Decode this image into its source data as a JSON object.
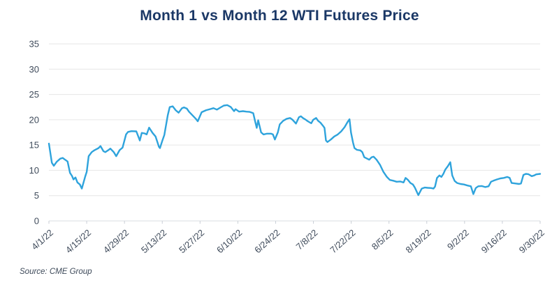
{
  "chart_data": {
    "type": "line",
    "title": "Month 1 vs Month 12 WTI Futures Price",
    "source_note": "Source: CME Group",
    "xlabel": "",
    "ylabel": "",
    "ylim": [
      0,
      35
    ],
    "y_ticks": [
      0,
      5,
      10,
      15,
      20,
      25,
      30,
      35
    ],
    "x_tick_labels": [
      "4/1/22",
      "4/15/22",
      "4/29/22",
      "5/13/22",
      "5/27/22",
      "6/10/22",
      "6/24/22",
      "7/8/22",
      "7/22/22",
      "8/5/22",
      "8/19/22",
      "9/2/22",
      "9/16/22",
      "9/30/22"
    ],
    "grid": "horizontal-only",
    "legend": "none",
    "colors": {
      "line": "#2ea3dc",
      "title": "#1b3866",
      "axis_text": "#3f4b5b",
      "gridline": "#e6e6e6",
      "baseline": "#d9dde2",
      "tick": "#c9ced6",
      "source_text": "#3e4a5a",
      "background": "#ffffff"
    },
    "series": [
      {
        "color": "#2ea3dc",
        "points": [
          [
            0.0,
            15.3
          ],
          [
            0.006,
            11.5
          ],
          [
            0.01,
            10.9
          ],
          [
            0.016,
            11.7
          ],
          [
            0.023,
            12.3
          ],
          [
            0.028,
            12.45
          ],
          [
            0.033,
            12.1
          ],
          [
            0.038,
            11.75
          ],
          [
            0.043,
            9.5
          ],
          [
            0.047,
            8.9
          ],
          [
            0.05,
            8.2
          ],
          [
            0.054,
            8.6
          ],
          [
            0.058,
            7.6
          ],
          [
            0.063,
            7.2
          ],
          [
            0.067,
            6.4
          ],
          [
            0.074,
            8.8
          ],
          [
            0.077,
            9.7
          ],
          [
            0.081,
            12.8
          ],
          [
            0.087,
            13.6
          ],
          [
            0.093,
            14.0
          ],
          [
            0.101,
            14.4
          ],
          [
            0.105,
            14.8
          ],
          [
            0.111,
            13.8
          ],
          [
            0.115,
            13.6
          ],
          [
            0.121,
            14.0
          ],
          [
            0.125,
            14.3
          ],
          [
            0.132,
            13.6
          ],
          [
            0.137,
            12.8
          ],
          [
            0.144,
            14.0
          ],
          [
            0.15,
            14.5
          ],
          [
            0.157,
            17.1
          ],
          [
            0.161,
            17.6
          ],
          [
            0.168,
            17.75
          ],
          [
            0.178,
            17.7
          ],
          [
            0.185,
            15.9
          ],
          [
            0.189,
            17.4
          ],
          [
            0.195,
            17.3
          ],
          [
            0.199,
            17.1
          ],
          [
            0.204,
            18.45
          ],
          [
            0.211,
            17.4
          ],
          [
            0.217,
            16.7
          ],
          [
            0.224,
            14.65
          ],
          [
            0.226,
            14.4
          ],
          [
            0.231,
            15.9
          ],
          [
            0.235,
            17.0
          ],
          [
            0.242,
            20.9
          ],
          [
            0.246,
            22.5
          ],
          [
            0.252,
            22.65
          ],
          [
            0.258,
            21.9
          ],
          [
            0.264,
            21.4
          ],
          [
            0.271,
            22.3
          ],
          [
            0.275,
            22.45
          ],
          [
            0.281,
            22.2
          ],
          [
            0.285,
            21.6
          ],
          [
            0.292,
            20.9
          ],
          [
            0.299,
            20.2
          ],
          [
            0.303,
            19.7
          ],
          [
            0.311,
            21.5
          ],
          [
            0.32,
            21.9
          ],
          [
            0.328,
            22.1
          ],
          [
            0.335,
            22.3
          ],
          [
            0.342,
            22.0
          ],
          [
            0.349,
            22.4
          ],
          [
            0.356,
            22.8
          ],
          [
            0.363,
            22.9
          ],
          [
            0.37,
            22.55
          ],
          [
            0.377,
            21.7
          ],
          [
            0.38,
            22.1
          ],
          [
            0.387,
            21.6
          ],
          [
            0.395,
            21.7
          ],
          [
            0.402,
            21.6
          ],
          [
            0.409,
            21.55
          ],
          [
            0.416,
            21.3
          ],
          [
            0.42,
            19.6
          ],
          [
            0.423,
            18.4
          ],
          [
            0.426,
            19.9
          ],
          [
            0.432,
            17.5
          ],
          [
            0.437,
            17.1
          ],
          [
            0.444,
            17.25
          ],
          [
            0.452,
            17.25
          ],
          [
            0.456,
            17.1
          ],
          [
            0.46,
            16.1
          ],
          [
            0.466,
            17.5
          ],
          [
            0.47,
            19.1
          ],
          [
            0.477,
            19.8
          ],
          [
            0.484,
            20.2
          ],
          [
            0.491,
            20.35
          ],
          [
            0.496,
            20.0
          ],
          [
            0.503,
            19.25
          ],
          [
            0.509,
            20.5
          ],
          [
            0.513,
            20.7
          ],
          [
            0.517,
            20.35
          ],
          [
            0.523,
            20.0
          ],
          [
            0.527,
            19.7
          ],
          [
            0.534,
            19.3
          ],
          [
            0.538,
            20.0
          ],
          [
            0.544,
            20.35
          ],
          [
            0.548,
            19.8
          ],
          [
            0.553,
            19.4
          ],
          [
            0.558,
            18.8
          ],
          [
            0.561,
            18.4
          ],
          [
            0.564,
            15.9
          ],
          [
            0.567,
            15.6
          ],
          [
            0.574,
            16.1
          ],
          [
            0.581,
            16.7
          ],
          [
            0.588,
            17.1
          ],
          [
            0.595,
            17.7
          ],
          [
            0.602,
            18.55
          ],
          [
            0.608,
            19.55
          ],
          [
            0.612,
            20.1
          ],
          [
            0.615,
            17.5
          ],
          [
            0.619,
            15.5
          ],
          [
            0.622,
            14.4
          ],
          [
            0.627,
            14.05
          ],
          [
            0.634,
            13.95
          ],
          [
            0.638,
            13.6
          ],
          [
            0.642,
            12.6
          ],
          [
            0.648,
            12.3
          ],
          [
            0.652,
            12.1
          ],
          [
            0.657,
            12.6
          ],
          [
            0.661,
            12.7
          ],
          [
            0.667,
            12.1
          ],
          [
            0.674,
            11.1
          ],
          [
            0.681,
            9.7
          ],
          [
            0.688,
            8.7
          ],
          [
            0.694,
            8.1
          ],
          [
            0.701,
            7.95
          ],
          [
            0.708,
            7.75
          ],
          [
            0.715,
            7.8
          ],
          [
            0.722,
            7.6
          ],
          [
            0.726,
            8.5
          ],
          [
            0.731,
            8.1
          ],
          [
            0.736,
            7.5
          ],
          [
            0.741,
            7.2
          ],
          [
            0.745,
            6.6
          ],
          [
            0.751,
            5.3
          ],
          [
            0.752,
            5.1
          ],
          [
            0.759,
            6.4
          ],
          [
            0.765,
            6.6
          ],
          [
            0.771,
            6.55
          ],
          [
            0.778,
            6.5
          ],
          [
            0.783,
            6.4
          ],
          [
            0.786,
            6.8
          ],
          [
            0.79,
            8.5
          ],
          [
            0.795,
            9.0
          ],
          [
            0.799,
            8.7
          ],
          [
            0.803,
            9.3
          ],
          [
            0.807,
            10.15
          ],
          [
            0.812,
            10.8
          ],
          [
            0.817,
            11.6
          ],
          [
            0.821,
            9.0
          ],
          [
            0.826,
            7.9
          ],
          [
            0.831,
            7.5
          ],
          [
            0.838,
            7.3
          ],
          [
            0.845,
            7.2
          ],
          [
            0.852,
            7.0
          ],
          [
            0.859,
            6.85
          ],
          [
            0.864,
            5.3
          ],
          [
            0.869,
            6.5
          ],
          [
            0.874,
            6.85
          ],
          [
            0.881,
            6.9
          ],
          [
            0.888,
            6.7
          ],
          [
            0.895,
            6.85
          ],
          [
            0.9,
            7.75
          ],
          [
            0.905,
            7.95
          ],
          [
            0.912,
            8.2
          ],
          [
            0.919,
            8.4
          ],
          [
            0.926,
            8.5
          ],
          [
            0.933,
            8.7
          ],
          [
            0.938,
            8.5
          ],
          [
            0.942,
            7.5
          ],
          [
            0.95,
            7.4
          ],
          [
            0.957,
            7.3
          ],
          [
            0.961,
            7.4
          ],
          [
            0.966,
            9.1
          ],
          [
            0.971,
            9.3
          ],
          [
            0.976,
            9.25
          ],
          [
            0.983,
            8.85
          ],
          [
            0.988,
            9.0
          ],
          [
            0.992,
            9.2
          ],
          [
            1.0,
            9.3
          ]
        ]
      }
    ]
  }
}
